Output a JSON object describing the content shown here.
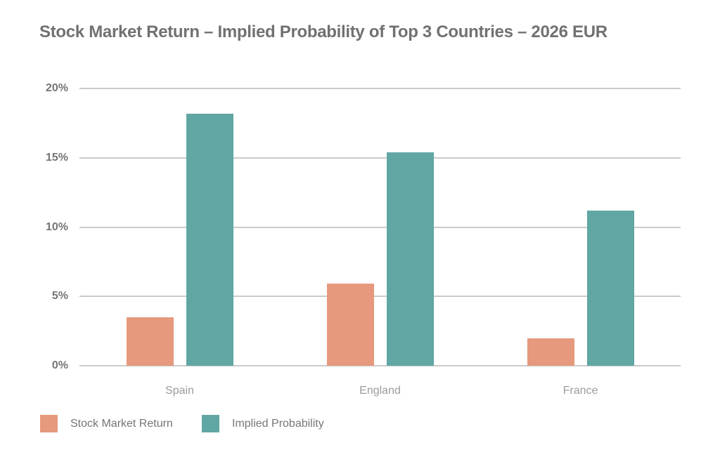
{
  "chart_data": {
    "type": "bar",
    "title": "Stock Market Return – Implied Probability of Top 3 Countries – 2026 EUR",
    "categories": [
      "Spain",
      "England",
      "France"
    ],
    "series": [
      {
        "name": "Stock Market Return",
        "color": "#E6997C",
        "values": [
          3.5,
          5.9,
          2.0
        ]
      },
      {
        "name": "Implied Probability",
        "color": "#60A6A3",
        "values": [
          18.2,
          15.4,
          11.2
        ]
      }
    ],
    "ylim": [
      0,
      20
    ],
    "yticks": [
      {
        "value": 0,
        "label": "0%"
      },
      {
        "value": 5,
        "label": "5%"
      },
      {
        "value": 10,
        "label": "10%"
      },
      {
        "value": 15,
        "label": "15%"
      },
      {
        "value": 20,
        "label": "20%"
      }
    ],
    "xlabel": "",
    "ylabel": "",
    "grid": "horizontal",
    "legend_position": "bottom-left"
  },
  "colors": {
    "background": "#FFFFFF",
    "grid": "#CBCBCB",
    "title_text": "#6F7173",
    "axis_tick_text": "#757575",
    "category_text": "#9B9B9B",
    "legend_text": "#747577"
  }
}
